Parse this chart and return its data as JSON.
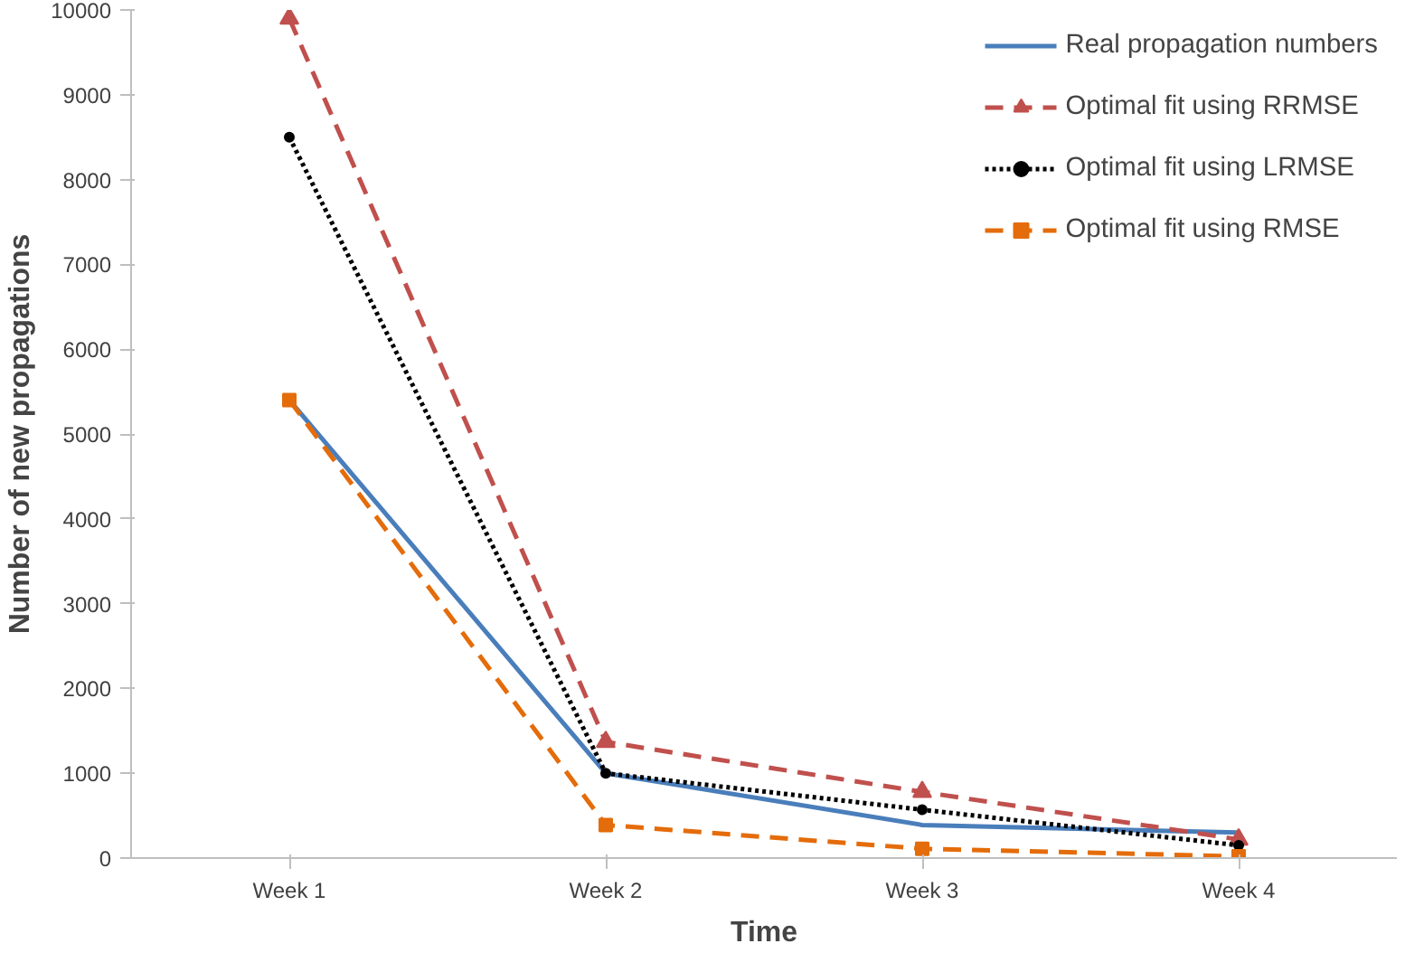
{
  "chart_data": {
    "type": "line",
    "xlabel": "Time",
    "ylabel": "Number of new propagations",
    "categories": [
      "Week 1",
      "Week 2",
      "Week 3",
      "Week 4"
    ],
    "ylim": [
      0,
      10000
    ],
    "yticks": [
      0,
      1000,
      2000,
      3000,
      4000,
      5000,
      6000,
      7000,
      8000,
      9000,
      10000
    ],
    "grid": false,
    "legend": "top right",
    "series": [
      {
        "name": "Real propagation numbers",
        "color": "#4a7ebb",
        "values": [
          5400,
          1000,
          390,
          300
        ],
        "line_style": "solid",
        "marker": "none"
      },
      {
        "name": "Optimal fit using RRMSE",
        "color": "#c0504d",
        "values": [
          9900,
          1370,
          780,
          220
        ],
        "line_style": "dashed",
        "marker": "triangle"
      },
      {
        "name": "Optimal fit using LRMSE",
        "color": "#000000",
        "values": [
          8500,
          1000,
          570,
          150
        ],
        "line_style": "dotted",
        "marker": "circle"
      },
      {
        "name": "Optimal fit using RMSE",
        "color": "#e46c0a",
        "values": [
          5400,
          390,
          110,
          20
        ],
        "line_style": "dashed",
        "marker": "square"
      }
    ]
  }
}
